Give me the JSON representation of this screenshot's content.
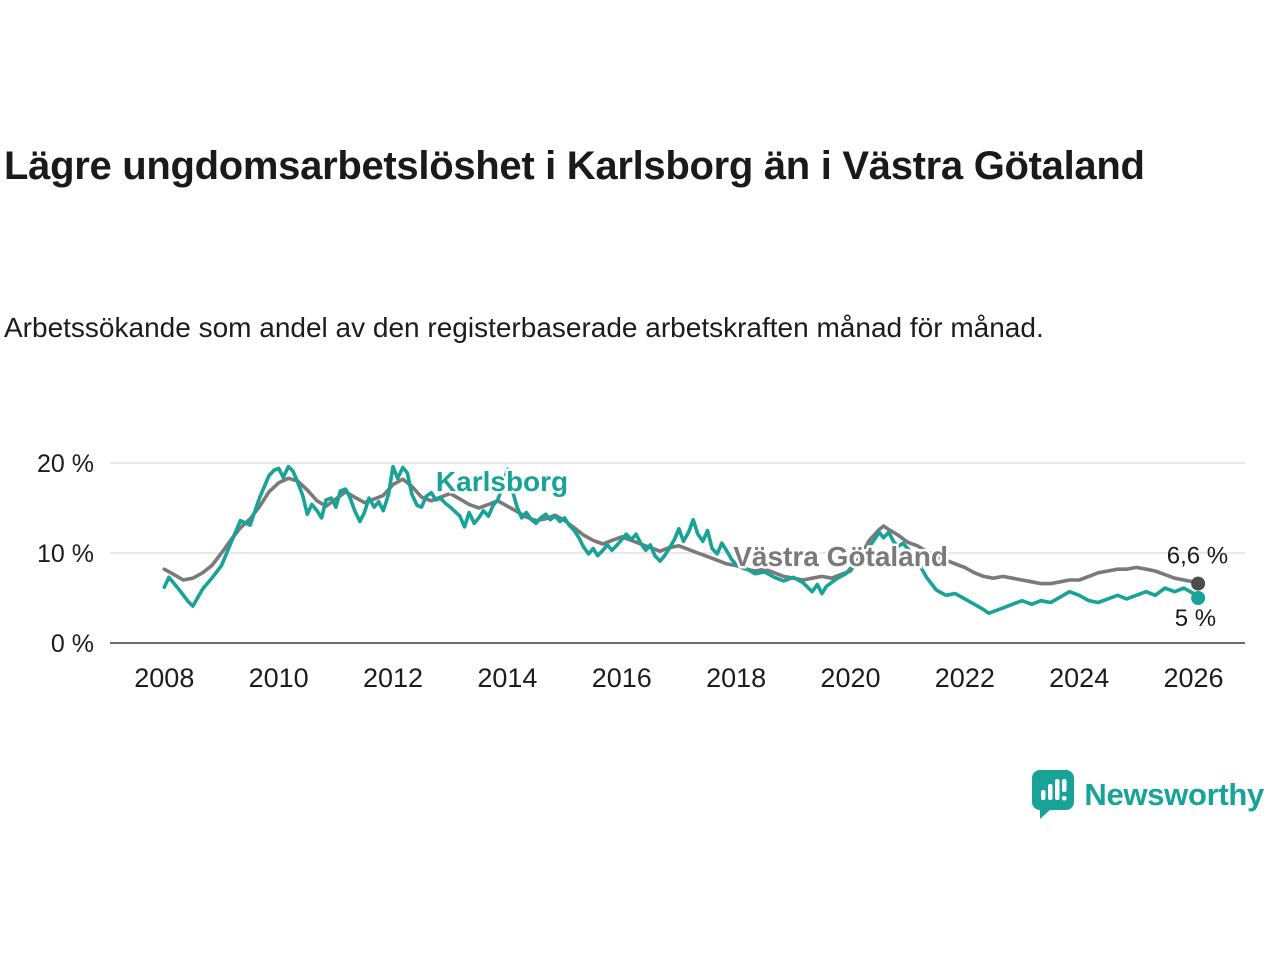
{
  "header": {
    "title": "Lägre ungdomsarbetslöshet i Karlsborg än i Västra Götaland",
    "subtitle": "Arbetssökande som andel av den registerbaserade arbetskraften månad för månad."
  },
  "branding": {
    "name": "Newsworthy",
    "color": "#17a398"
  },
  "chart_data": {
    "type": "line",
    "title": "Lägre ungdomsarbetslöshet i Karlsborg än i Västra Götaland",
    "xlabel": "",
    "ylabel": "Arbetssökande som andel av den registerbaserade arbetskraften",
    "ylim": [
      0,
      20
    ],
    "xlim": [
      2007.05,
      2026.9
    ],
    "grid": "horizontal",
    "legend_position": "inline-labels",
    "yticks": [
      {
        "value": 0,
        "label": "0 %"
      },
      {
        "value": 10,
        "label": "10 %"
      },
      {
        "value": 20,
        "label": "20 %"
      }
    ],
    "xticks": [
      2008,
      2010,
      2012,
      2014,
      2016,
      2018,
      2020,
      2022,
      2024,
      2026
    ],
    "series": [
      {
        "id": "vastra-gotaland",
        "name": "Västra Götaland",
        "color": "#7a7a7a",
        "dot_color": "#4d4d4d",
        "label_pos": {
          "x": 2017.95,
          "y": 8.55
        },
        "end_label": "6,6 %",
        "points": [
          [
            2008.0,
            8.2
          ],
          [
            2008.17,
            7.6
          ],
          [
            2008.33,
            7.0
          ],
          [
            2008.5,
            7.2
          ],
          [
            2008.67,
            7.8
          ],
          [
            2008.83,
            8.6
          ],
          [
            2009.0,
            10.0
          ],
          [
            2009.17,
            11.5
          ],
          [
            2009.33,
            12.8
          ],
          [
            2009.5,
            13.8
          ],
          [
            2009.67,
            15.2
          ],
          [
            2009.83,
            16.8
          ],
          [
            2010.0,
            17.8
          ],
          [
            2010.17,
            18.3
          ],
          [
            2010.33,
            18.0
          ],
          [
            2010.5,
            17.0
          ],
          [
            2010.67,
            15.8
          ],
          [
            2010.83,
            15.2
          ],
          [
            2011.0,
            16.0
          ],
          [
            2011.17,
            16.8
          ],
          [
            2011.33,
            16.2
          ],
          [
            2011.5,
            15.6
          ],
          [
            2011.67,
            16.0
          ],
          [
            2011.83,
            16.4
          ],
          [
            2012.0,
            17.6
          ],
          [
            2012.17,
            18.2
          ],
          [
            2012.33,
            17.4
          ],
          [
            2012.5,
            16.2
          ],
          [
            2012.67,
            15.8
          ],
          [
            2012.83,
            16.2
          ],
          [
            2013.0,
            16.6
          ],
          [
            2013.17,
            16.0
          ],
          [
            2013.33,
            15.4
          ],
          [
            2013.5,
            15.0
          ],
          [
            2013.67,
            15.4
          ],
          [
            2013.83,
            15.8
          ],
          [
            2014.0,
            15.2
          ],
          [
            2014.17,
            14.6
          ],
          [
            2014.33,
            14.0
          ],
          [
            2014.5,
            13.6
          ],
          [
            2014.67,
            13.8
          ],
          [
            2014.83,
            14.2
          ],
          [
            2015.0,
            13.6
          ],
          [
            2015.17,
            12.8
          ],
          [
            2015.33,
            12.0
          ],
          [
            2015.5,
            11.4
          ],
          [
            2015.67,
            11.0
          ],
          [
            2015.83,
            11.4
          ],
          [
            2016.0,
            11.8
          ],
          [
            2016.17,
            11.4
          ],
          [
            2016.33,
            11.0
          ],
          [
            2016.5,
            10.6
          ],
          [
            2016.67,
            10.2
          ],
          [
            2016.83,
            10.6
          ],
          [
            2017.0,
            10.8
          ],
          [
            2017.17,
            10.4
          ],
          [
            2017.33,
            10.0
          ],
          [
            2017.5,
            9.6
          ],
          [
            2017.67,
            9.2
          ],
          [
            2017.83,
            8.8
          ],
          [
            2018.0,
            8.6
          ],
          [
            2018.17,
            8.2
          ],
          [
            2018.33,
            8.0
          ],
          [
            2018.5,
            8.2
          ],
          [
            2018.67,
            7.8
          ],
          [
            2018.83,
            7.4
          ],
          [
            2019.0,
            7.2
          ],
          [
            2019.17,
            7.0
          ],
          [
            2019.33,
            7.2
          ],
          [
            2019.5,
            7.4
          ],
          [
            2019.67,
            7.2
          ],
          [
            2019.83,
            7.6
          ],
          [
            2020.0,
            8.0
          ],
          [
            2020.17,
            9.6
          ],
          [
            2020.33,
            11.4
          ],
          [
            2020.5,
            12.6
          ],
          [
            2020.58,
            13.0
          ],
          [
            2020.67,
            12.6
          ],
          [
            2020.83,
            12.0
          ],
          [
            2021.0,
            11.2
          ],
          [
            2021.17,
            10.8
          ],
          [
            2021.33,
            10.2
          ],
          [
            2021.5,
            9.6
          ],
          [
            2021.67,
            9.2
          ],
          [
            2021.83,
            8.8
          ],
          [
            2022.0,
            8.4
          ],
          [
            2022.17,
            7.8
          ],
          [
            2022.33,
            7.4
          ],
          [
            2022.5,
            7.2
          ],
          [
            2022.67,
            7.4
          ],
          [
            2022.83,
            7.2
          ],
          [
            2023.0,
            7.0
          ],
          [
            2023.17,
            6.8
          ],
          [
            2023.33,
            6.6
          ],
          [
            2023.5,
            6.6
          ],
          [
            2023.67,
            6.8
          ],
          [
            2023.83,
            7.0
          ],
          [
            2024.0,
            7.0
          ],
          [
            2024.17,
            7.4
          ],
          [
            2024.33,
            7.8
          ],
          [
            2024.5,
            8.0
          ],
          [
            2024.67,
            8.2
          ],
          [
            2024.83,
            8.2
          ],
          [
            2025.0,
            8.4
          ],
          [
            2025.17,
            8.2
          ],
          [
            2025.33,
            8.0
          ],
          [
            2025.5,
            7.6
          ],
          [
            2025.67,
            7.2
          ],
          [
            2025.83,
            7.0
          ],
          [
            2026.0,
            6.8
          ],
          [
            2026.08,
            6.6
          ]
        ]
      },
      {
        "id": "karlsborg",
        "name": "Karlsborg",
        "color": "#17a398",
        "dot_color": "#17a398",
        "label_pos": {
          "x": 2012.75,
          "y": 16.9
        },
        "end_label": "5 %",
        "points": [
          [
            2008.0,
            6.2
          ],
          [
            2008.08,
            7.3
          ],
          [
            2008.25,
            6.0
          ],
          [
            2008.42,
            4.6
          ],
          [
            2008.5,
            4.1
          ],
          [
            2008.67,
            6.0
          ],
          [
            2008.83,
            7.2
          ],
          [
            2009.0,
            8.6
          ],
          [
            2009.17,
            11.2
          ],
          [
            2009.33,
            13.6
          ],
          [
            2009.5,
            13.1
          ],
          [
            2009.67,
            16.2
          ],
          [
            2009.83,
            18.6
          ],
          [
            2009.92,
            19.2
          ],
          [
            2010.0,
            19.4
          ],
          [
            2010.08,
            18.4
          ],
          [
            2010.17,
            19.6
          ],
          [
            2010.25,
            19.1
          ],
          [
            2010.33,
            17.9
          ],
          [
            2010.42,
            16.4
          ],
          [
            2010.5,
            14.3
          ],
          [
            2010.58,
            15.4
          ],
          [
            2010.67,
            14.7
          ],
          [
            2010.75,
            13.9
          ],
          [
            2010.83,
            15.9
          ],
          [
            2010.92,
            16.1
          ],
          [
            2011.0,
            15.1
          ],
          [
            2011.08,
            16.9
          ],
          [
            2011.17,
            17.1
          ],
          [
            2011.25,
            16.1
          ],
          [
            2011.33,
            14.7
          ],
          [
            2011.42,
            13.5
          ],
          [
            2011.5,
            14.5
          ],
          [
            2011.58,
            16.1
          ],
          [
            2011.67,
            15.1
          ],
          [
            2011.75,
            15.7
          ],
          [
            2011.83,
            14.7
          ],
          [
            2011.92,
            16.5
          ],
          [
            2012.0,
            19.6
          ],
          [
            2012.08,
            18.3
          ],
          [
            2012.17,
            19.5
          ],
          [
            2012.25,
            18.9
          ],
          [
            2012.33,
            16.5
          ],
          [
            2012.42,
            15.3
          ],
          [
            2012.5,
            15.1
          ],
          [
            2012.58,
            16.3
          ],
          [
            2012.67,
            16.7
          ],
          [
            2012.75,
            15.9
          ],
          [
            2012.83,
            16.1
          ],
          [
            2012.92,
            15.5
          ],
          [
            2013.0,
            15.1
          ],
          [
            2013.17,
            14.1
          ],
          [
            2013.25,
            12.9
          ],
          [
            2013.33,
            14.5
          ],
          [
            2013.42,
            13.3
          ],
          [
            2013.5,
            13.9
          ],
          [
            2013.58,
            14.7
          ],
          [
            2013.67,
            14.1
          ],
          [
            2013.75,
            15.3
          ],
          [
            2013.83,
            15.9
          ],
          [
            2013.92,
            17.4
          ],
          [
            2014.0,
            19.3
          ],
          [
            2014.08,
            17.1
          ],
          [
            2014.17,
            15.1
          ],
          [
            2014.25,
            13.9
          ],
          [
            2014.33,
            14.5
          ],
          [
            2014.42,
            13.7
          ],
          [
            2014.5,
            13.3
          ],
          [
            2014.58,
            13.9
          ],
          [
            2014.67,
            14.3
          ],
          [
            2014.75,
            13.7
          ],
          [
            2014.83,
            14.1
          ],
          [
            2014.92,
            13.5
          ],
          [
            2015.0,
            13.9
          ],
          [
            2015.08,
            13.1
          ],
          [
            2015.17,
            12.5
          ],
          [
            2015.25,
            11.7
          ],
          [
            2015.33,
            10.7
          ],
          [
            2015.42,
            9.9
          ],
          [
            2015.5,
            10.5
          ],
          [
            2015.58,
            9.7
          ],
          [
            2015.67,
            10.3
          ],
          [
            2015.75,
            10.9
          ],
          [
            2015.83,
            10.3
          ],
          [
            2015.92,
            10.9
          ],
          [
            2016.0,
            11.5
          ],
          [
            2016.08,
            12.1
          ],
          [
            2016.17,
            11.5
          ],
          [
            2016.25,
            12.1
          ],
          [
            2016.33,
            11.1
          ],
          [
            2016.42,
            10.3
          ],
          [
            2016.5,
            10.9
          ],
          [
            2016.58,
            9.7
          ],
          [
            2016.67,
            9.1
          ],
          [
            2016.75,
            9.7
          ],
          [
            2016.83,
            10.5
          ],
          [
            2016.92,
            11.5
          ],
          [
            2017.0,
            12.7
          ],
          [
            2017.08,
            11.3
          ],
          [
            2017.17,
            12.3
          ],
          [
            2017.25,
            13.7
          ],
          [
            2017.33,
            12.1
          ],
          [
            2017.42,
            11.3
          ],
          [
            2017.5,
            12.5
          ],
          [
            2017.58,
            10.5
          ],
          [
            2017.67,
            9.9
          ],
          [
            2017.75,
            11.1
          ],
          [
            2017.83,
            10.3
          ],
          [
            2017.92,
            9.3
          ],
          [
            2018.0,
            8.7
          ],
          [
            2018.17,
            8.3
          ],
          [
            2018.33,
            7.7
          ],
          [
            2018.5,
            7.9
          ],
          [
            2018.67,
            7.3
          ],
          [
            2018.83,
            6.9
          ],
          [
            2019.0,
            7.3
          ],
          [
            2019.17,
            6.7
          ],
          [
            2019.33,
            5.7
          ],
          [
            2019.42,
            6.5
          ],
          [
            2019.5,
            5.5
          ],
          [
            2019.58,
            6.3
          ],
          [
            2019.75,
            7.1
          ],
          [
            2019.92,
            7.7
          ],
          [
            2020.0,
            8.3
          ],
          [
            2020.17,
            9.5
          ],
          [
            2020.33,
            10.7
          ],
          [
            2020.42,
            11.5
          ],
          [
            2020.5,
            12.3
          ],
          [
            2020.58,
            11.7
          ],
          [
            2020.67,
            12.3
          ],
          [
            2020.75,
            11.3
          ],
          [
            2020.83,
            10.7
          ],
          [
            2020.92,
            11.1
          ],
          [
            2021.0,
            10.5
          ],
          [
            2021.17,
            9.1
          ],
          [
            2021.33,
            7.3
          ],
          [
            2021.5,
            5.9
          ],
          [
            2021.67,
            5.3
          ],
          [
            2021.83,
            5.5
          ],
          [
            2022.0,
            4.9
          ],
          [
            2022.17,
            4.3
          ],
          [
            2022.33,
            3.7
          ],
          [
            2022.42,
            3.3
          ],
          [
            2022.5,
            3.5
          ],
          [
            2022.67,
            3.9
          ],
          [
            2022.83,
            4.3
          ],
          [
            2023.0,
            4.7
          ],
          [
            2023.17,
            4.3
          ],
          [
            2023.33,
            4.7
          ],
          [
            2023.5,
            4.5
          ],
          [
            2023.67,
            5.1
          ],
          [
            2023.83,
            5.7
          ],
          [
            2024.0,
            5.3
          ],
          [
            2024.17,
            4.7
          ],
          [
            2024.33,
            4.5
          ],
          [
            2024.5,
            4.9
          ],
          [
            2024.67,
            5.3
          ],
          [
            2024.83,
            4.9
          ],
          [
            2025.0,
            5.3
          ],
          [
            2025.17,
            5.7
          ],
          [
            2025.33,
            5.3
          ],
          [
            2025.5,
            6.1
          ],
          [
            2025.67,
            5.7
          ],
          [
            2025.83,
            6.1
          ],
          [
            2026.0,
            5.5
          ],
          [
            2026.08,
            5.0
          ]
        ]
      }
    ]
  }
}
